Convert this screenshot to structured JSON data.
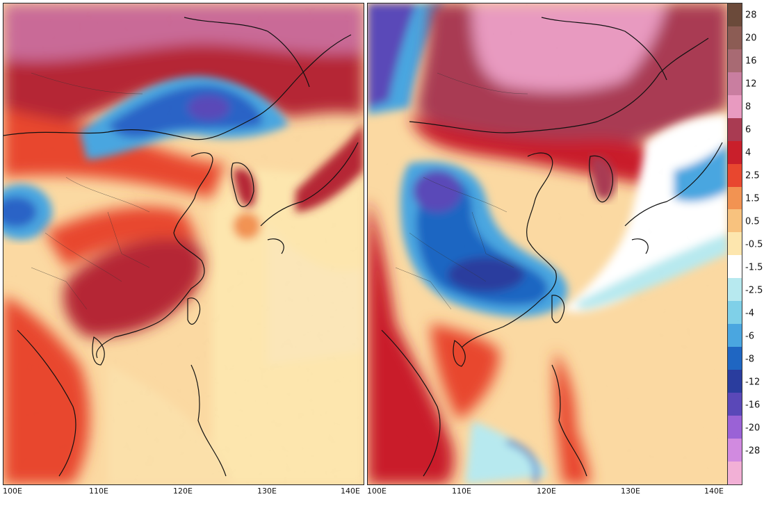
{
  "maps": [
    {
      "name": "left-panel",
      "x_ticks": [
        "100E",
        "110E",
        "120E",
        "130E",
        "140E"
      ]
    },
    {
      "name": "right-panel",
      "x_ticks": [
        "100E",
        "110E",
        "120E",
        "130E",
        "140E"
      ]
    }
  ],
  "legend": {
    "labels": [
      "28",
      "20",
      "16",
      "12",
      "8",
      "6",
      "4",
      "2.5",
      "1.5",
      "0.5",
      "-0.5",
      "-1.5",
      "-2.5",
      "-4",
      "-6",
      "-8",
      "-12",
      "-16",
      "-20",
      "-28"
    ],
    "colors": [
      "#6b4a3a",
      "#8c5c54",
      "#a86a73",
      "#c97ea0",
      "#e89ac0",
      "#a93b52",
      "#c91f2b",
      "#e8472f",
      "#f29352",
      "#f8c27e",
      "#fde6ae",
      "#ffffff",
      "#b7e9ef",
      "#7fd0e8",
      "#4aa6e0",
      "#1f66c2",
      "#2a3d9e",
      "#5a48b8",
      "#9a62d6",
      "#d18ae0",
      "#f2b0d6"
    ]
  },
  "colors": {
    "warm_strong": "#b52735",
    "warm": "#e8472f",
    "warm_light": "#fde6ae",
    "cold": "#2a64c6",
    "cold_strong": "#3c3aa8",
    "very_warm": "#c96a97",
    "coast": "#111111"
  }
}
